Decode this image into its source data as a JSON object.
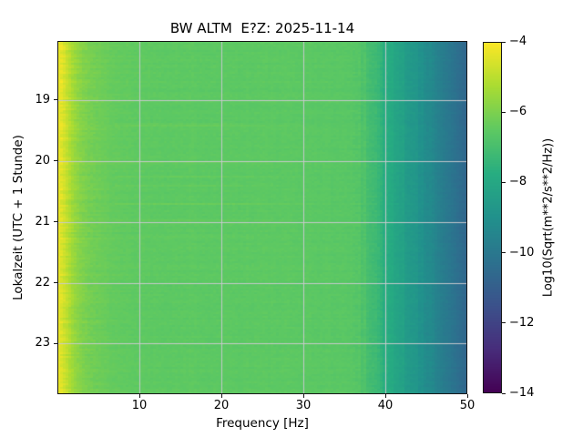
{
  "chart_data": {
    "type": "heatmap",
    "subtype": "spectrogram",
    "title": "BW ALTM  E?Z: 2025-11-14",
    "station": "BW ALTM",
    "channel": "E?Z",
    "date": "2025-11-14",
    "xlabel": "Frequency [Hz]",
    "ylabel": "Lokalzeit (UTC + 1 Stunde)",
    "colorbar_label": "Log10(Sqrt(m**2/s**2/Hz))",
    "colormap": "viridis",
    "grid": true,
    "xlim_hz": [
      0,
      50
    ],
    "x_tick_values": [
      10,
      20,
      30,
      40,
      50
    ],
    "x_tick_labels": [
      "10",
      "20",
      "30",
      "40",
      "50"
    ],
    "ylim_hours": [
      18.03,
      23.83
    ],
    "y_tick_values": [
      19,
      20,
      21,
      22,
      23
    ],
    "y_tick_labels": [
      "19",
      "20",
      "21",
      "22",
      "23"
    ],
    "value_range": [
      -14,
      -4
    ],
    "colorbar_tick_values": [
      -4,
      -6,
      -8,
      -10,
      -12,
      -14
    ],
    "colorbar_tick_labels": [
      "−4",
      "−6",
      "−8",
      "−10",
      "−12",
      "−14"
    ],
    "spectral_profile": {
      "freq_hz": [
        0,
        0.5,
        1,
        1.5,
        2,
        3,
        4,
        6,
        8,
        10,
        15,
        20,
        25,
        30,
        34,
        36,
        37,
        38,
        39,
        40,
        42,
        44,
        46,
        48,
        50
      ],
      "log10_sqrt_psd": [
        -4.2,
        -4.5,
        -4.85,
        -5.2,
        -5.55,
        -5.95,
        -6.15,
        -6.35,
        -6.45,
        -6.5,
        -6.52,
        -6.53,
        -6.53,
        -6.55,
        -6.58,
        -6.62,
        -6.72,
        -6.95,
        -7.3,
        -7.7,
        -8.3,
        -8.9,
        -9.5,
        -10.1,
        -10.7
      ]
    },
    "notes": "Bright yellow band at lowest frequencies (0-1 Hz), yellow-green to ~4 Hz, uniform green (~ -6.5) from 5-37 Hz, speckled roll-off to teal/blue above 38 Hz; low-frequency energy slightly stronger before ~21:00; faint brighter streaks 8-28 Hz near 19:30-20:30."
  },
  "style": {
    "background": "#ffffff",
    "grid_color": "#c9c9cf",
    "frame_color": "#151515",
    "text_color": "#000000",
    "viridis_yellow": "#fde725",
    "viridis_green": "#5ec962",
    "viridis_teal": "#21918c",
    "viridis_blue": "#31688e",
    "viridis_dark": "#440154"
  }
}
